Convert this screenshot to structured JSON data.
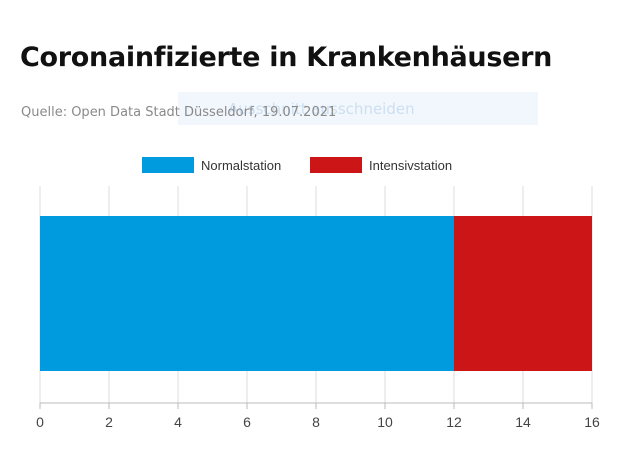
{
  "title": "Coronainfizierte in Krankenhäusern",
  "source": "Quelle: Open Data Stadt Düsseldorf, 19.07.2021",
  "overlay_text": "Ausschnitt ausschneiden",
  "colors": {
    "normal": "#009bde",
    "intensive": "#cb1517",
    "grid": "#dddddd",
    "axis": "#bbbbbb"
  },
  "chart_data": {
    "type": "bar",
    "orientation": "horizontal",
    "stacked": true,
    "categories": [
      ""
    ],
    "series": [
      {
        "name": "Normalstation",
        "values": [
          12
        ]
      },
      {
        "name": "Intensivstation",
        "values": [
          4
        ]
      }
    ],
    "xlim": [
      0,
      16
    ],
    "xticks": [
      0,
      2,
      4,
      6,
      8,
      10,
      12,
      14,
      16
    ],
    "grid": true,
    "legend": "top-center"
  }
}
